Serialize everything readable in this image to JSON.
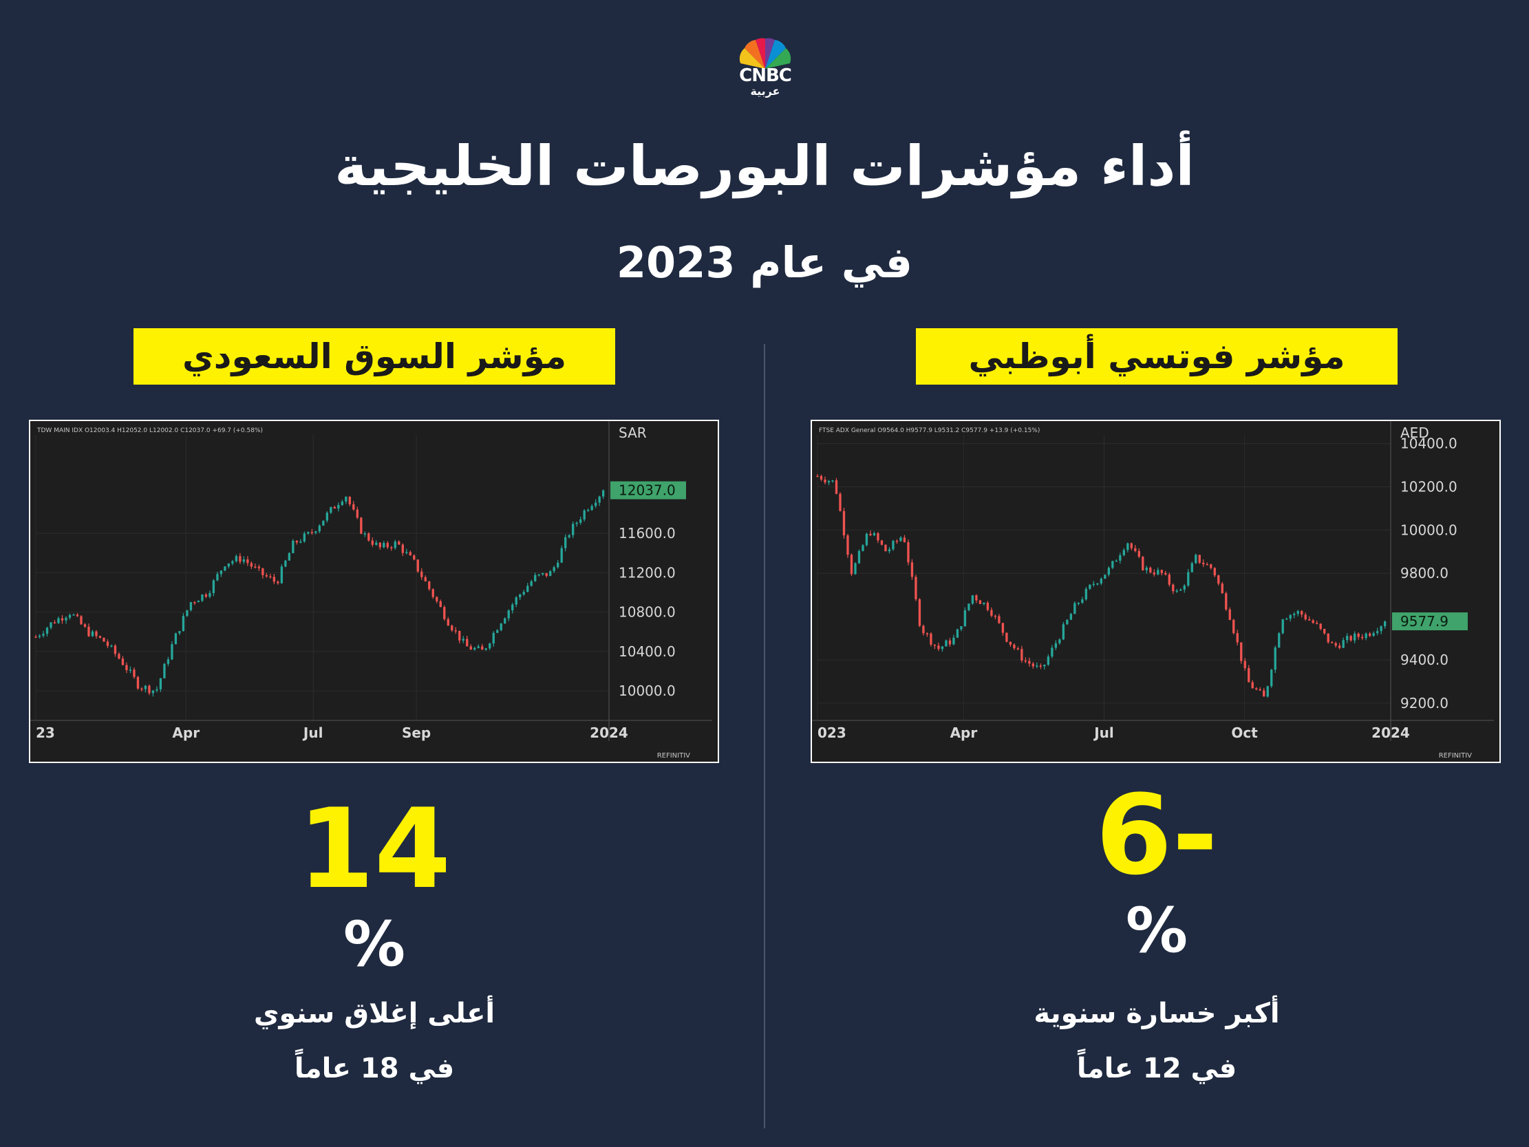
{
  "logo": {
    "wordmark": "CNBC",
    "sub": "عربية"
  },
  "title": "أداء مؤشرات البورصات الخليجية",
  "subtitle": "في عام 2023",
  "colors": {
    "background": "#1f2a40",
    "accent": "#fff200",
    "up": "#26a69a",
    "down": "#ef5350",
    "chart_bg": "#1e1e1e"
  },
  "panels": {
    "saudi": {
      "label": "مؤشر السوق السعودي",
      "big_value": "14",
      "percent_sign": "%",
      "desc1": "أعلى إغلاق سنوي",
      "desc2": "في 18 عاماً"
    },
    "abudhabi": {
      "label": "مؤشر فوتسي أبوظبي",
      "big_value": "6-",
      "percent_sign": "%",
      "desc1": "أكبر خسارة سنوية",
      "desc2": "في 12 عاماً"
    }
  },
  "chart_data": [
    {
      "type": "line",
      "style": "candlestick",
      "ohlc_header": "TDW MAIN IDX  O12003.4  H12052.0  L12002.0  C12037.0  +69.7 (+0.58%)",
      "currency": "SAR",
      "last_price_label": "12037.0",
      "last_price": 12037.0,
      "source": "REFINITIV",
      "ylim": [
        9700,
        12600
      ],
      "y_ticks": [
        10000,
        10400,
        10800,
        11200,
        11600
      ],
      "y_tick_labels": [
        "10000.0",
        "10400.0",
        "10800.0",
        "11200.0",
        "11600.0"
      ],
      "x_ticks": [
        {
          "label": "23",
          "t": 0
        },
        {
          "label": "Apr",
          "t": 0.262
        },
        {
          "label": "Jul",
          "t": 0.484
        },
        {
          "label": "Sep",
          "t": 0.664
        },
        {
          "label": "2024",
          "t": 1.0
        }
      ],
      "x": [
        0,
        0.03,
        0.06,
        0.09,
        0.12,
        0.15,
        0.18,
        0.21,
        0.24,
        0.27,
        0.3,
        0.33,
        0.36,
        0.39,
        0.42,
        0.45,
        0.48,
        0.51,
        0.54,
        0.57,
        0.6,
        0.63,
        0.66,
        0.69,
        0.72,
        0.75,
        0.78,
        0.81,
        0.84,
        0.87,
        0.9,
        0.93,
        0.96,
        0.99
      ],
      "values": [
        10550,
        10700,
        10800,
        10600,
        10500,
        10300,
        10050,
        10000,
        10500,
        10900,
        11000,
        11300,
        11350,
        11200,
        11100,
        11500,
        11600,
        11800,
        12000,
        11600,
        11450,
        11500,
        11300,
        11000,
        10700,
        10450,
        10400,
        10700,
        10950,
        11150,
        11200,
        11600,
        11850,
        12037
      ]
    },
    {
      "type": "line",
      "style": "candlestick",
      "ohlc_header": "FTSE ADX General  O9564.0  H9577.9  L9531.2  C9577.9  +13.9 (+0.15%)",
      "currency": "AED",
      "last_price_label": "9577.9",
      "last_price": 9577.9,
      "source": "REFINITIV",
      "ylim": [
        9120,
        10440
      ],
      "y_ticks": [
        9200,
        9400,
        9800,
        10000,
        10200,
        10400
      ],
      "y_tick_labels": [
        "9200.0",
        "9400.0",
        "9800.0",
        "10000.0",
        "10200.0",
        "10400.0"
      ],
      "x_ticks": [
        {
          "label": "023",
          "t": 0
        },
        {
          "label": "Apr",
          "t": 0.255
        },
        {
          "label": "Jul",
          "t": 0.5
        },
        {
          "label": "Oct",
          "t": 0.745
        },
        {
          "label": "2024",
          "t": 1.0
        }
      ],
      "x": [
        0,
        0.03,
        0.06,
        0.09,
        0.12,
        0.15,
        0.18,
        0.21,
        0.24,
        0.27,
        0.3,
        0.33,
        0.36,
        0.39,
        0.42,
        0.45,
        0.48,
        0.51,
        0.54,
        0.57,
        0.6,
        0.63,
        0.66,
        0.69,
        0.72,
        0.75,
        0.78,
        0.81,
        0.84,
        0.87,
        0.9,
        0.93,
        0.96,
        0.99
      ],
      "values": [
        10250,
        10220,
        9800,
        10000,
        9900,
        9980,
        9550,
        9450,
        9500,
        9700,
        9640,
        9500,
        9400,
        9350,
        9500,
        9650,
        9750,
        9820,
        9950,
        9820,
        9800,
        9700,
        9870,
        9820,
        9600,
        9300,
        9220,
        9600,
        9620,
        9560,
        9460,
        9500,
        9520,
        9577.9
      ]
    }
  ]
}
